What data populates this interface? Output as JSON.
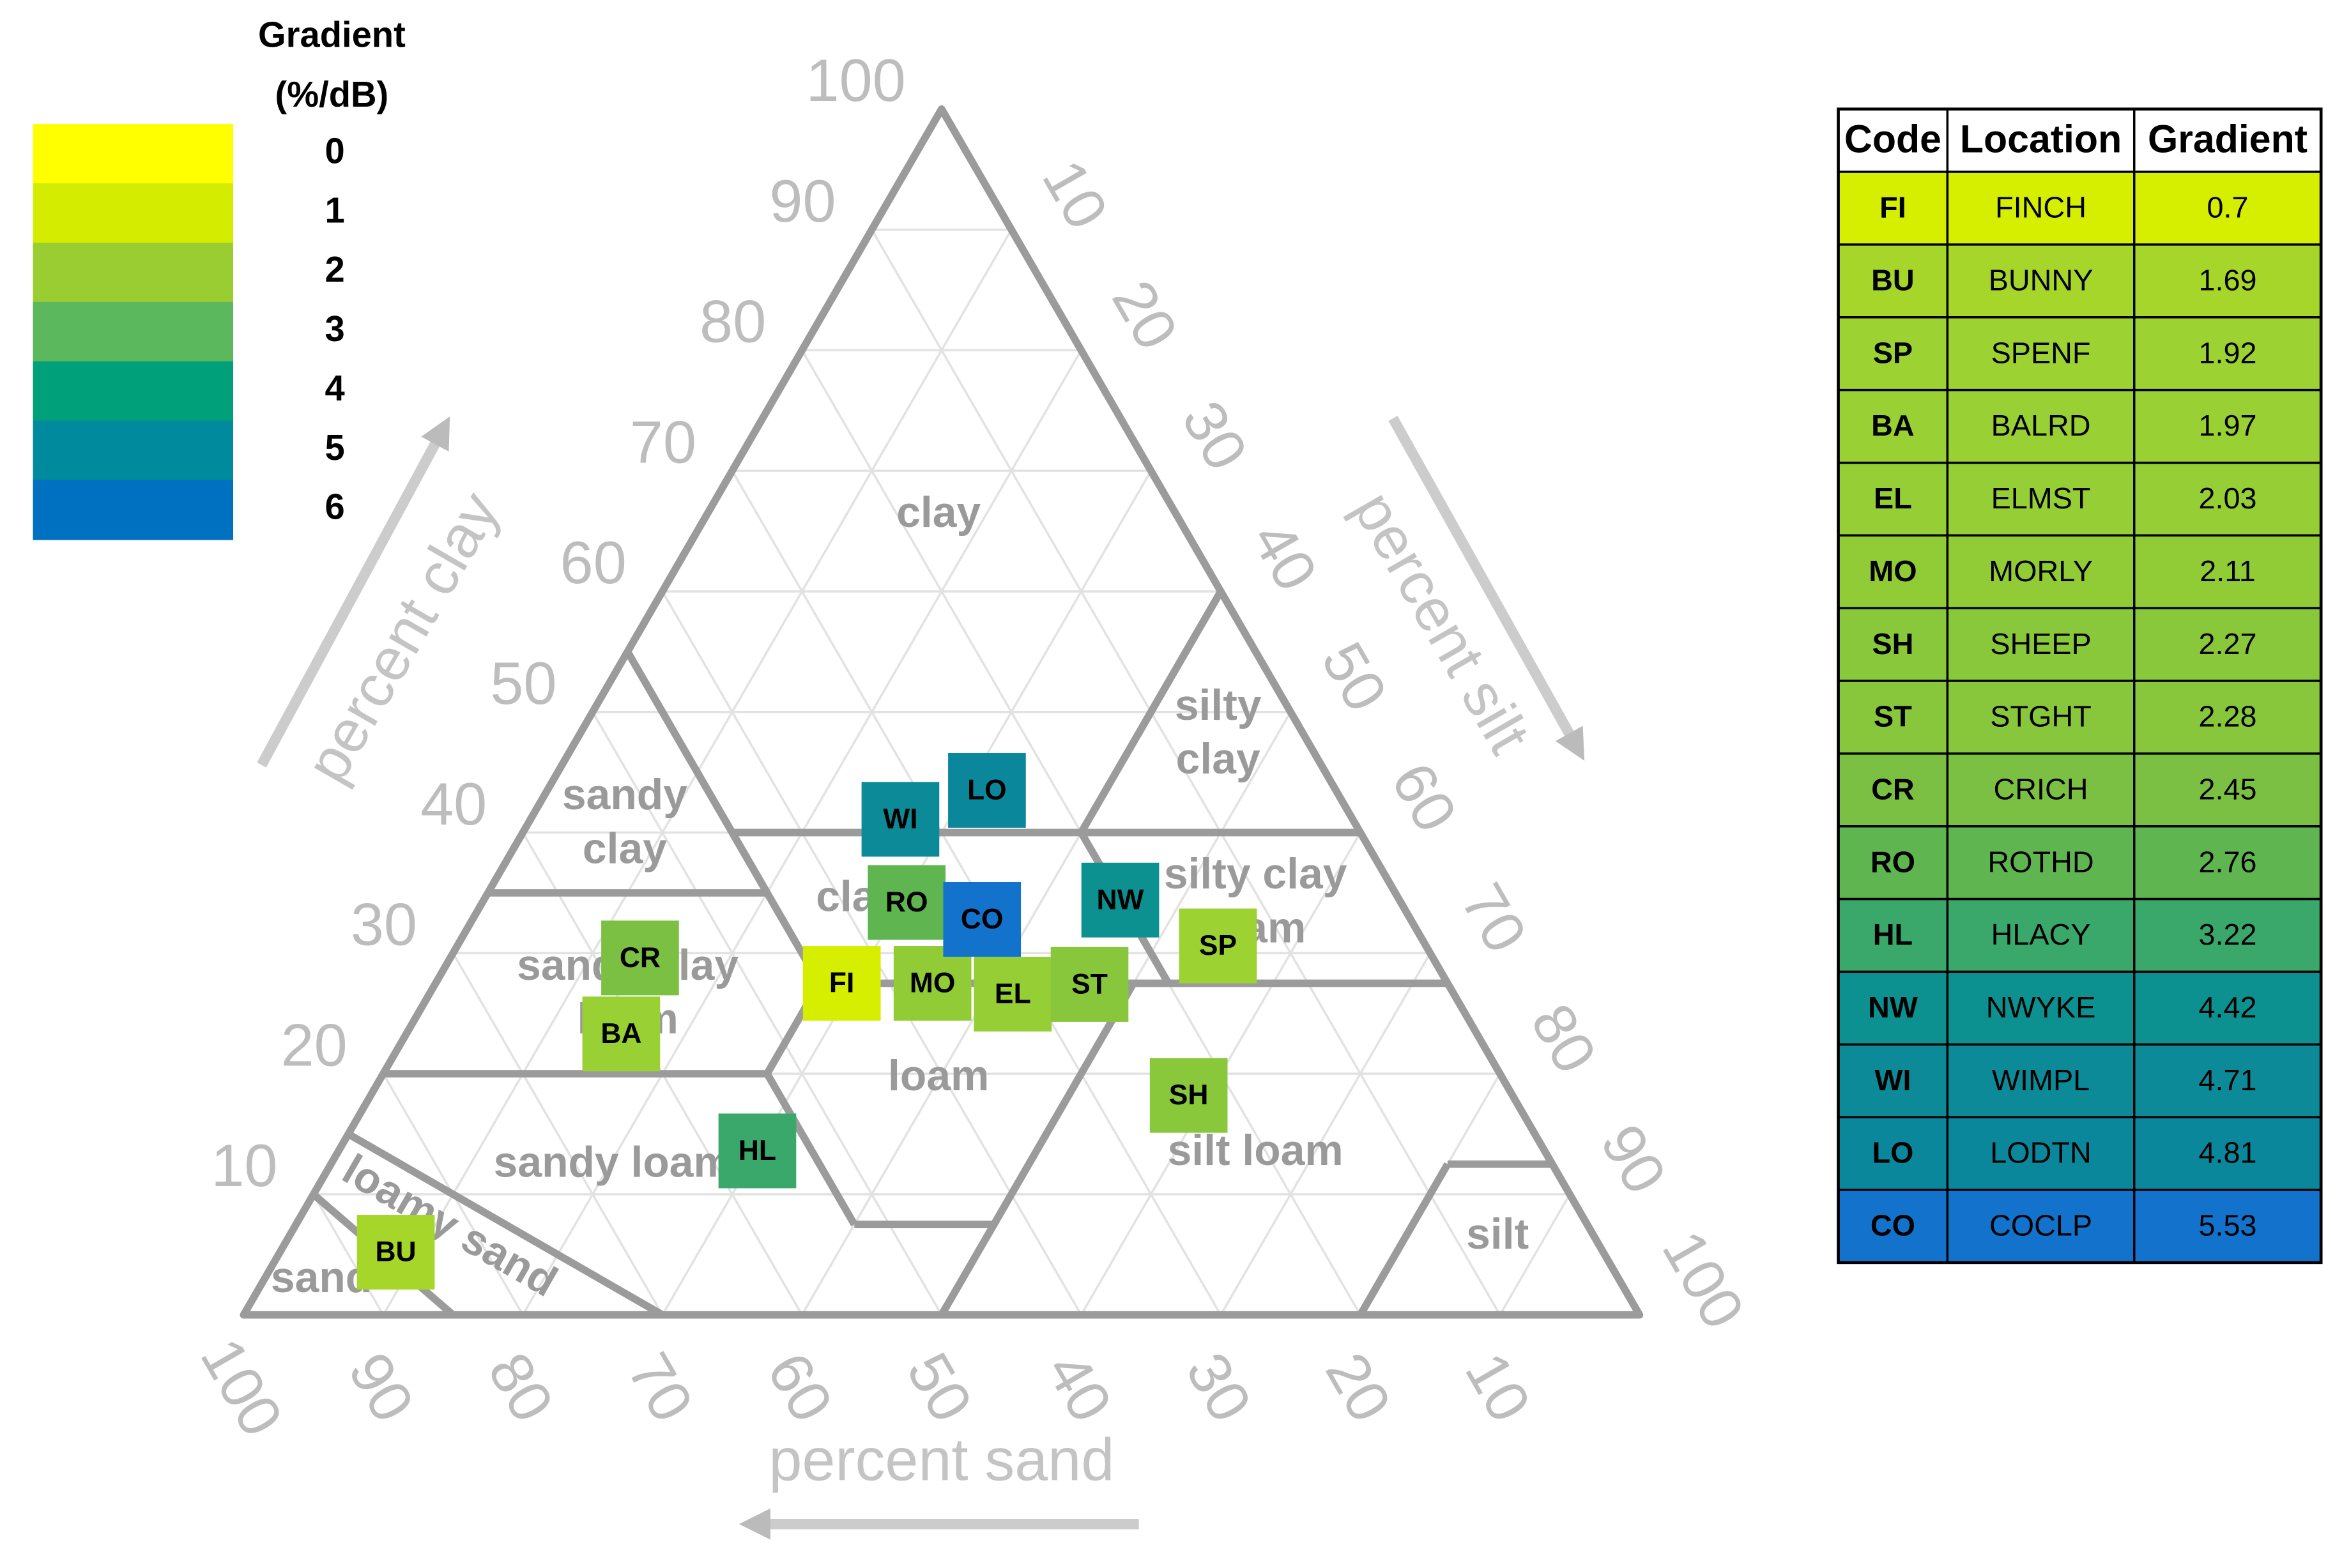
{
  "chart_data": {
    "type": "ternary",
    "axes": {
      "clay": {
        "title": "percent clay",
        "lim": [
          0,
          100
        ],
        "ticks": [
          10,
          20,
          30,
          40,
          50,
          60,
          70,
          80,
          90,
          100
        ]
      },
      "silt": {
        "title": "percent silt",
        "lim": [
          0,
          100
        ],
        "ticks": [
          10,
          20,
          30,
          40,
          50,
          60,
          70,
          80,
          90,
          100
        ]
      },
      "sand": {
        "title": "percent sand",
        "lim": [
          0,
          100
        ],
        "ticks": [
          100,
          90,
          80,
          70,
          60,
          50,
          40,
          30,
          20,
          10
        ]
      }
    },
    "grid": true,
    "regions": [
      {
        "lines": [
          "clay"
        ]
      },
      {
        "lines": [
          "silty",
          "clay"
        ]
      },
      {
        "lines": [
          "sandy",
          "clay"
        ]
      },
      {
        "lines": [
          "silty clay",
          "loam"
        ]
      },
      {
        "lines": [
          "clay loam"
        ]
      },
      {
        "lines": [
          "sandy clay",
          "loam"
        ]
      },
      {
        "lines": [
          "loam"
        ]
      },
      {
        "lines": [
          "sandy loam"
        ]
      },
      {
        "lines": [
          "loamy sand"
        ]
      },
      {
        "lines": [
          "sand"
        ]
      },
      {
        "lines": [
          "silt loam"
        ]
      },
      {
        "lines": [
          "silt"
        ]
      }
    ],
    "points": [
      {
        "label": "FI",
        "clay": 27.5,
        "silt": 29.1,
        "color": "#d6ee00"
      },
      {
        "label": "BU",
        "clay": 5.2,
        "silt": 8.3,
        "color": "#a6d62a"
      },
      {
        "label": "SP",
        "clay": 30.6,
        "silt": 54.5,
        "color": "#9cd231"
      },
      {
        "label": "BA",
        "clay": 23.3,
        "silt": 15.4,
        "color": "#99d033"
      },
      {
        "label": "EL",
        "clay": 26.6,
        "silt": 41.8,
        "color": "#95ce35"
      },
      {
        "label": "MO",
        "clay": 27.5,
        "silt": 35.6,
        "color": "#91cc37"
      },
      {
        "label": "SH",
        "clay": 18.2,
        "silt": 58.6,
        "color": "#89c73b"
      },
      {
        "label": "ST",
        "clay": 27.4,
        "silt": 46.9,
        "color": "#88c63c"
      },
      {
        "label": "CR",
        "clay": 29.6,
        "silt": 13.6,
        "color": "#7cc043"
      },
      {
        "label": "RO",
        "clay": 34.2,
        "silt": 30.4,
        "color": "#5fb650"
      },
      {
        "label": "HL",
        "clay": 13.6,
        "silt": 30.0,
        "color": "#3aa86a"
      },
      {
        "label": "NW",
        "clay": 34.4,
        "silt": 45.6,
        "color": "#0c9090"
      },
      {
        "label": "WI",
        "clay": 41.1,
        "silt": 26.5,
        "color": "#0c8a98"
      },
      {
        "label": "LO",
        "clay": 43.5,
        "silt": 31.5,
        "color": "#0b879c"
      },
      {
        "label": "CO",
        "clay": 32.8,
        "silt": 36.5,
        "color": "#1272cc"
      }
    ]
  },
  "legend": {
    "title": [
      "Gradient",
      "(%/dB)"
    ],
    "levels": [
      0,
      1,
      2,
      3,
      4,
      5,
      6
    ],
    "colors": [
      "#ffff00",
      "#d4ec00",
      "#9acd32",
      "#5cb85c",
      "#00a07a",
      "#008a9e",
      "#0070c0"
    ]
  },
  "table": {
    "columns": [
      "Code",
      "Location",
      "Gradient"
    ],
    "rows": [
      {
        "code": "FI",
        "location": "FINCH",
        "gradient": 0.7,
        "color": "#d6ee00"
      },
      {
        "code": "BU",
        "location": "BUNNY",
        "gradient": 1.69,
        "color": "#a6d62a"
      },
      {
        "code": "SP",
        "location": "SPENF",
        "gradient": 1.92,
        "color": "#9cd231"
      },
      {
        "code": "BA",
        "location": "BALRD",
        "gradient": 1.97,
        "color": "#99d033"
      },
      {
        "code": "EL",
        "location": "ELMST",
        "gradient": 2.03,
        "color": "#95ce35"
      },
      {
        "code": "MO",
        "location": "MORLY",
        "gradient": 2.11,
        "color": "#91cc37"
      },
      {
        "code": "SH",
        "location": "SHEEP",
        "gradient": 2.27,
        "color": "#89c73b"
      },
      {
        "code": "ST",
        "location": "STGHT",
        "gradient": 2.28,
        "color": "#88c63c"
      },
      {
        "code": "CR",
        "location": "CRICH",
        "gradient": 2.45,
        "color": "#7cc043"
      },
      {
        "code": "RO",
        "location": "ROTHD",
        "gradient": 2.76,
        "color": "#5fb650"
      },
      {
        "code": "HL",
        "location": "HLACY",
        "gradient": 3.22,
        "color": "#3aa86a"
      },
      {
        "code": "NW",
        "location": "NWYKE",
        "gradient": 4.42,
        "color": "#0c9090"
      },
      {
        "code": "WI",
        "location": "WIMPL",
        "gradient": 4.71,
        "color": "#0c8a98"
      },
      {
        "code": "LO",
        "location": "LODTN",
        "gradient": 4.81,
        "color": "#0b879c"
      },
      {
        "code": "CO",
        "location": "COCLP",
        "gradient": 5.53,
        "color": "#1272cc"
      }
    ]
  }
}
